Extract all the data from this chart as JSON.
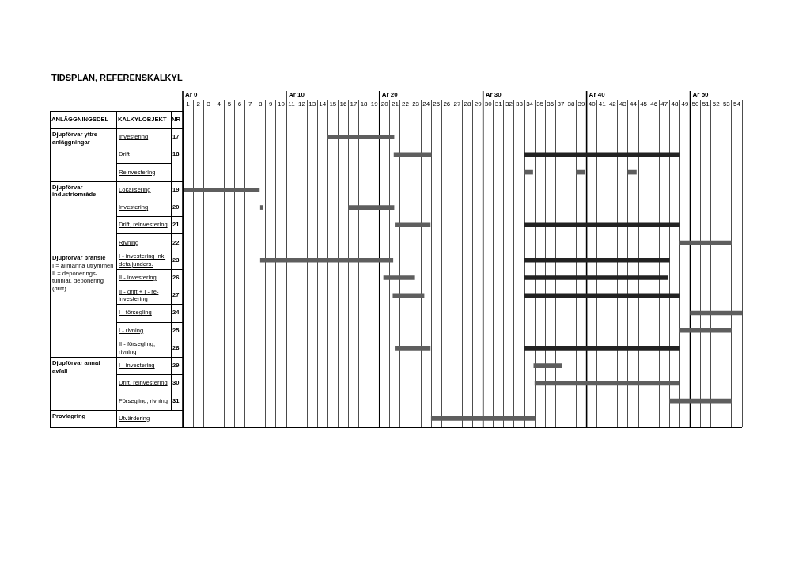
{
  "chart_data": {
    "type": "bar",
    "orientation": "horizontal",
    "title": "TIDSPLAN, REFERENSKALKYL",
    "ylabel": "KALKYLOBJEKT",
    "y2label": "NR",
    "annotations": [
      "ANLÄGGNINGSDEL",
      "Djupförvar yttre anläggningar",
      "Djupförvar industriområde",
      "Djupförvar bränsle",
      "I = allmänna utrymmen II = deponerings-tunnlar, deponering (drift)",
      "Djupförvar annat avfall",
      "Provlagring"
    ],
    "categories": [
      "Investering",
      "Drift",
      "Reinvestering",
      "Lokalisering",
      "Investering",
      "Drift, reinvestering",
      "Rivning",
      "I - investering inkl detaljunders.",
      "II - investering",
      "II - drift + I - re-investering",
      "I - försegling",
      "I - rivning",
      "II - försegling, rivning",
      "I - investering",
      "Drift, reinvestering",
      "Försegling, rivning",
      "Utvärdering"
    ],
    "y2_categories": [
      "17",
      "18",
      null,
      "19",
      "20",
      "21",
      "22",
      "23",
      "26",
      "27",
      "24",
      "25",
      "28",
      "29",
      "30",
      "31",
      null
    ],
    "series": [
      {
        "color": "#5e5e5e",
        "base": [
          14,
          20.4,
          33,
          0,
          7.5,
          20.5,
          48,
          7.5,
          19.4,
          20.3,
          49,
          48,
          20.5,
          33.9,
          34,
          47,
          24
        ],
        "values": [
          6.4,
          3.6,
          0.8,
          7.4,
          0.2,
          3.4,
          5,
          12.8,
          3,
          3,
          5,
          5,
          3.4,
          2.7,
          13.9,
          6,
          10
        ]
      },
      {
        "color": "#222222",
        "base": [
          null,
          33,
          null,
          null,
          null,
          33,
          null,
          33,
          33,
          33,
          null,
          null,
          33,
          null,
          null,
          null,
          null
        ],
        "values": [
          null,
          15,
          null,
          null,
          null,
          15,
          null,
          14,
          13.8,
          15,
          null,
          null,
          15,
          null,
          null,
          null,
          null
        ]
      },
      {
        "color": "#5e5e5e",
        "base": [
          null,
          null,
          38,
          null,
          16,
          null,
          null,
          null,
          null,
          null,
          null,
          null,
          null,
          null,
          null,
          null,
          null
        ],
        "values": [
          null,
          null,
          0.8,
          null,
          4.4,
          null,
          null,
          null,
          null,
          null,
          null,
          null,
          null,
          null,
          null,
          null,
          null
        ]
      },
      {
        "color": "#5e5e5e",
        "base": [
          null,
          null,
          43,
          null,
          null,
          null,
          null,
          null,
          null,
          null,
          null,
          null,
          null,
          null,
          null,
          null,
          null
        ],
        "values": [
          null,
          null,
          0.8,
          null,
          null,
          null,
          null,
          null,
          null,
          null,
          null,
          null,
          null,
          null,
          null,
          null,
          null
        ]
      }
    ],
    "xlim": [
      0,
      54
    ],
    "xticks": [
      {
        "value": 0.5,
        "label": "1"
      },
      {
        "value": 1.5,
        "label": "2"
      },
      {
        "value": 2.5,
        "label": "3"
      },
      {
        "value": 3.5,
        "label": "4"
      },
      {
        "value": 4.5,
        "label": "5"
      },
      {
        "value": 5.5,
        "label": "6"
      },
      {
        "value": 6.5,
        "label": "7"
      },
      {
        "value": 7.5,
        "label": "8"
      },
      {
        "value": 8.5,
        "label": "9"
      },
      {
        "value": 9.5,
        "label": "10"
      },
      {
        "value": 10.5,
        "label": "11"
      },
      {
        "value": 11.5,
        "label": "12"
      },
      {
        "value": 12.5,
        "label": "13"
      },
      {
        "value": 13.5,
        "label": "14"
      },
      {
        "value": 14.5,
        "label": "15"
      },
      {
        "value": 15.5,
        "label": "16"
      },
      {
        "value": 16.5,
        "label": "17"
      },
      {
        "value": 17.5,
        "label": "18"
      },
      {
        "value": 18.5,
        "label": "19"
      },
      {
        "value": 19.5,
        "label": "20"
      },
      {
        "value": 20.5,
        "label": "21"
      },
      {
        "value": 21.5,
        "label": "22"
      },
      {
        "value": 22.5,
        "label": "23"
      },
      {
        "value": 23.5,
        "label": "24"
      },
      {
        "value": 24.5,
        "label": "25"
      },
      {
        "value": 25.5,
        "label": "26"
      },
      {
        "value": 26.5,
        "label": "27"
      },
      {
        "value": 27.5,
        "label": "28"
      },
      {
        "value": 28.5,
        "label": "29"
      },
      {
        "value": 29.5,
        "label": "30"
      },
      {
        "value": 30.5,
        "label": "31"
      },
      {
        "value": 31.5,
        "label": "32"
      },
      {
        "value": 32.5,
        "label": "33"
      },
      {
        "value": 33.5,
        "label": "34"
      },
      {
        "value": 34.5,
        "label": "35"
      },
      {
        "value": 35.5,
        "label": "36"
      },
      {
        "value": 36.5,
        "label": "37"
      },
      {
        "value": 37.5,
        "label": "38"
      },
      {
        "value": 38.5,
        "label": "39"
      },
      {
        "value": 39.5,
        "label": "40"
      },
      {
        "value": 40.5,
        "label": "41"
      },
      {
        "value": 41.5,
        "label": "42"
      },
      {
        "value": 42.5,
        "label": "43"
      },
      {
        "value": 43.5,
        "label": "44"
      },
      {
        "value": 44.5,
        "label": "45"
      },
      {
        "value": 45.5,
        "label": "46"
      },
      {
        "value": 46.5,
        "label": "47"
      },
      {
        "value": 47.5,
        "label": "48"
      },
      {
        "value": 48.5,
        "label": "49"
      },
      {
        "value": 49.5,
        "label": "50"
      },
      {
        "value": 50.5,
        "label": "51"
      },
      {
        "value": 51.5,
        "label": "52"
      },
      {
        "value": 52.5,
        "label": "53"
      },
      {
        "value": 53.5,
        "label": "54"
      }
    ],
    "ref_lines": [
      {
        "axis": "x",
        "value": 0,
        "label": "Ar 0",
        "color": "#000000"
      },
      {
        "axis": "x",
        "value": 10,
        "label": "Ar 10",
        "color": "#000000"
      },
      {
        "axis": "x",
        "value": 19,
        "label": "Ar 20",
        "color": "#000000"
      },
      {
        "axis": "x",
        "value": 29,
        "label": "Ar 30",
        "color": "#000000"
      },
      {
        "axis": "x",
        "value": 39,
        "label": "Ar 40",
        "color": "#000000"
      },
      {
        "axis": "x",
        "value": 49,
        "label": "Ar 50",
        "color": "#000000"
      }
    ],
    "grid": "x",
    "legend": false
  }
}
